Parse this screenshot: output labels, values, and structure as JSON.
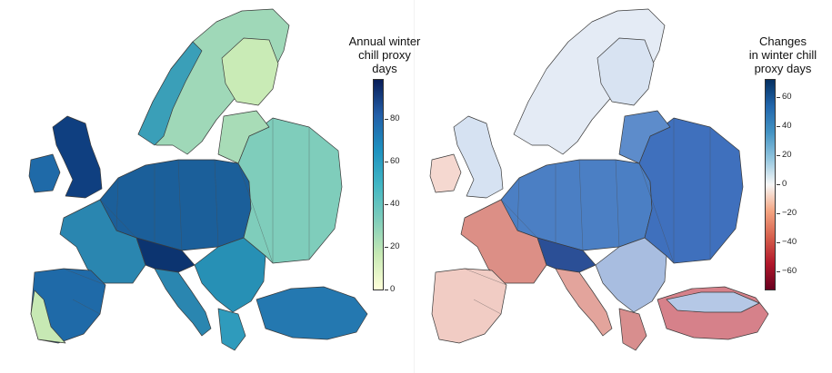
{
  "left_panel": {
    "colorbar": {
      "title_lines": [
        "Annual winter",
        "chill proxy",
        "days"
      ],
      "ticks": [
        "80",
        "60",
        "40",
        "20",
        "0"
      ],
      "colors": [
        "#081d58",
        "#225ea8",
        "#1d91c0",
        "#41b6c4",
        "#7fcdbb",
        "#c7e9b4",
        "#ffffd9"
      ]
    }
  },
  "right_panel": {
    "colorbar": {
      "title_lines": [
        "Changes",
        "in winter chill",
        "proxy days"
      ],
      "ticks": [
        "60",
        "40",
        "20",
        "0",
        "−20",
        "−40",
        "−60"
      ],
      "colors": [
        "#053061",
        "#2166ac",
        "#4393c3",
        "#92c5de",
        "#f7f7f7",
        "#f4a582",
        "#d6604d",
        "#b2182b",
        "#67001f"
      ]
    }
  }
}
